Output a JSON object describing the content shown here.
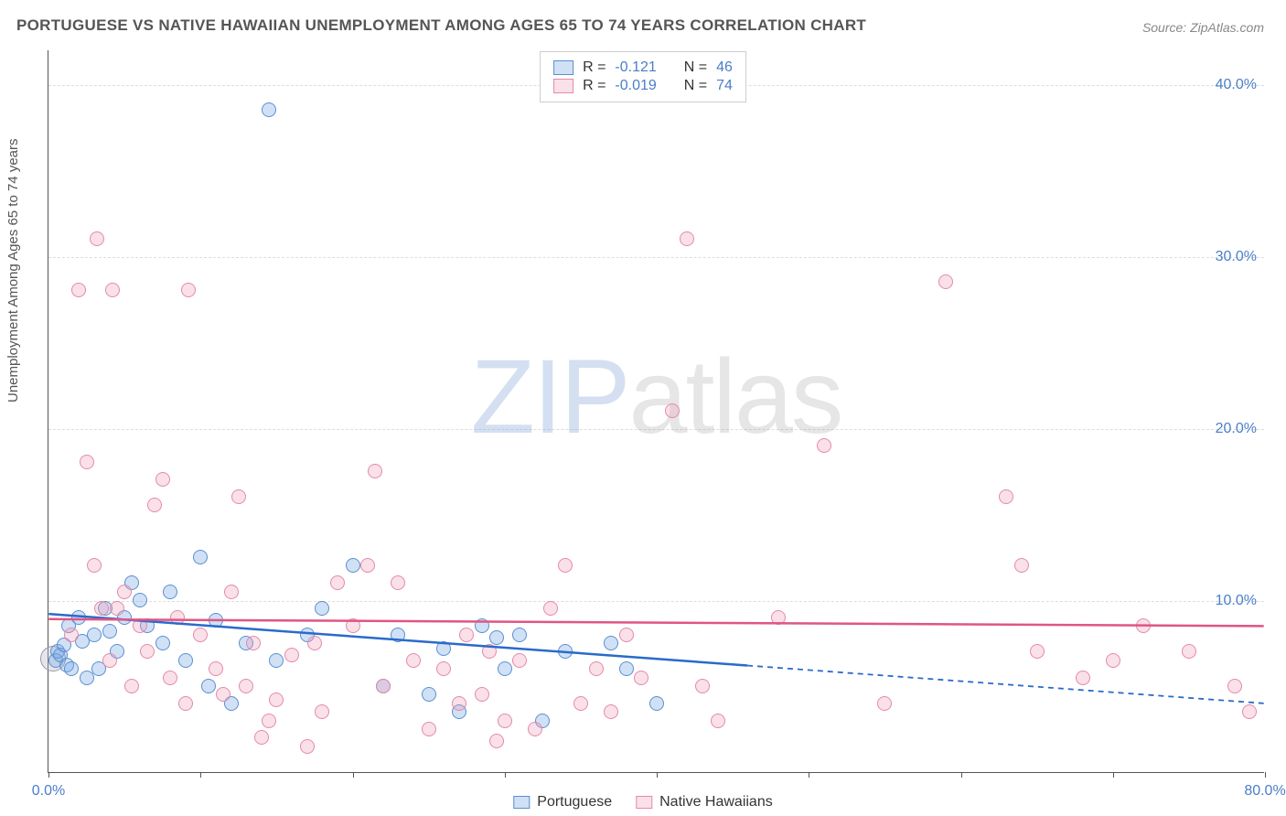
{
  "title": "PORTUGUESE VS NATIVE HAWAIIAN UNEMPLOYMENT AMONG AGES 65 TO 74 YEARS CORRELATION CHART",
  "source": "Source: ZipAtlas.com",
  "y_axis_label": "Unemployment Among Ages 65 to 74 years",
  "watermark": {
    "part1": "ZIP",
    "part2": "atlas"
  },
  "chart": {
    "type": "scatter",
    "xlim": [
      0,
      80
    ],
    "ylim": [
      0,
      42
    ],
    "y_ticks": [
      10,
      20,
      30,
      40
    ],
    "y_tick_labels": [
      "10.0%",
      "20.0%",
      "30.0%",
      "40.0%"
    ],
    "x_ticks": [
      0,
      10,
      20,
      30,
      40,
      50,
      60,
      70,
      80
    ],
    "x_tick_labels": {
      "0": "0.0%",
      "80": "80.0%"
    },
    "background_color": "#ffffff",
    "grid_color": "#dddddd",
    "axis_color": "#555555",
    "marker_radius": 8,
    "marker_stroke": 1.5,
    "series": [
      {
        "name": "Portuguese",
        "fill": "rgba(120,170,230,0.35)",
        "stroke": "#5a8fd0",
        "line_color": "#2a6acc",
        "r": -0.121,
        "n": 46,
        "regression": {
          "x1": 0,
          "y1": 9.2,
          "x2": 46,
          "y2": 6.2,
          "dash_x2": 80,
          "dash_y2": 4.0
        },
        "points": [
          [
            0.5,
            6.5
          ],
          [
            0.6,
            7.0
          ],
          [
            0.8,
            6.8
          ],
          [
            1.0,
            7.4
          ],
          [
            1.2,
            6.2
          ],
          [
            1.3,
            8.5
          ],
          [
            1.5,
            6.0
          ],
          [
            2.0,
            9.0
          ],
          [
            2.2,
            7.6
          ],
          [
            2.5,
            5.5
          ],
          [
            3.0,
            8.0
          ],
          [
            3.3,
            6.0
          ],
          [
            3.7,
            9.5
          ],
          [
            4.0,
            8.2
          ],
          [
            4.5,
            7.0
          ],
          [
            5.0,
            9.0
          ],
          [
            5.5,
            11.0
          ],
          [
            6.0,
            10.0
          ],
          [
            6.5,
            8.5
          ],
          [
            7.5,
            7.5
          ],
          [
            8.0,
            10.5
          ],
          [
            9.0,
            6.5
          ],
          [
            10.0,
            12.5
          ],
          [
            10.5,
            5.0
          ],
          [
            11.0,
            8.8
          ],
          [
            12.0,
            4.0
          ],
          [
            13.0,
            7.5
          ],
          [
            14.5,
            38.5
          ],
          [
            15.0,
            6.5
          ],
          [
            17.0,
            8.0
          ],
          [
            18.0,
            9.5
          ],
          [
            20.0,
            12.0
          ],
          [
            22.0,
            5.0
          ],
          [
            23.0,
            8.0
          ],
          [
            25.0,
            4.5
          ],
          [
            26.0,
            7.2
          ],
          [
            27.0,
            3.5
          ],
          [
            28.5,
            8.5
          ],
          [
            29.5,
            7.8
          ],
          [
            30.0,
            6.0
          ],
          [
            31.0,
            8.0
          ],
          [
            32.5,
            3.0
          ],
          [
            34.0,
            7.0
          ],
          [
            37.0,
            7.5
          ],
          [
            38.0,
            6.0
          ],
          [
            40.0,
            4.0
          ]
        ],
        "big_point": {
          "x": 0.3,
          "y": 6.6,
          "r": 14
        }
      },
      {
        "name": "Native Hawaiians",
        "fill": "rgba(240,160,185,0.32)",
        "stroke": "#e48aa8",
        "line_color": "#e05585",
        "r": -0.019,
        "n": 74,
        "regression": {
          "x1": 0,
          "y1": 8.9,
          "x2": 80,
          "y2": 8.5
        },
        "points": [
          [
            1.5,
            8.0
          ],
          [
            2.0,
            28.0
          ],
          [
            2.5,
            18.0
          ],
          [
            3.0,
            12.0
          ],
          [
            3.2,
            31.0
          ],
          [
            3.5,
            9.5
          ],
          [
            4.0,
            6.5
          ],
          [
            4.2,
            28.0
          ],
          [
            4.5,
            9.5
          ],
          [
            5.0,
            10.5
          ],
          [
            5.5,
            5.0
          ],
          [
            6.0,
            8.5
          ],
          [
            6.5,
            7.0
          ],
          [
            7.0,
            15.5
          ],
          [
            7.5,
            17.0
          ],
          [
            8.0,
            5.5
          ],
          [
            8.5,
            9.0
          ],
          [
            9.0,
            4.0
          ],
          [
            9.2,
            28.0
          ],
          [
            10.0,
            8.0
          ],
          [
            11.0,
            6.0
          ],
          [
            11.5,
            4.5
          ],
          [
            12.0,
            10.5
          ],
          [
            12.5,
            16.0
          ],
          [
            13.0,
            5.0
          ],
          [
            13.5,
            7.5
          ],
          [
            14.0,
            2.0
          ],
          [
            14.5,
            3.0
          ],
          [
            15.0,
            4.2
          ],
          [
            16.0,
            6.8
          ],
          [
            17.0,
            1.5
          ],
          [
            17.5,
            7.5
          ],
          [
            18.0,
            3.5
          ],
          [
            19.0,
            11.0
          ],
          [
            20.0,
            8.5
          ],
          [
            21.0,
            12.0
          ],
          [
            21.5,
            17.5
          ],
          [
            22.0,
            5.0
          ],
          [
            23.0,
            11.0
          ],
          [
            24.0,
            6.5
          ],
          [
            25.0,
            2.5
          ],
          [
            26.0,
            6.0
          ],
          [
            27.0,
            4.0
          ],
          [
            27.5,
            8.0
          ],
          [
            28.5,
            4.5
          ],
          [
            29.0,
            7.0
          ],
          [
            29.5,
            1.8
          ],
          [
            30.0,
            3.0
          ],
          [
            31.0,
            6.5
          ],
          [
            32.0,
            2.5
          ],
          [
            33.0,
            9.5
          ],
          [
            34.0,
            12.0
          ],
          [
            35.0,
            4.0
          ],
          [
            36.0,
            6.0
          ],
          [
            37.0,
            3.5
          ],
          [
            38.0,
            8.0
          ],
          [
            39.0,
            5.5
          ],
          [
            41.0,
            21.0
          ],
          [
            42.0,
            31.0
          ],
          [
            43.0,
            5.0
          ],
          [
            44.0,
            3.0
          ],
          [
            48.0,
            9.0
          ],
          [
            51.0,
            19.0
          ],
          [
            55.0,
            4.0
          ],
          [
            59.0,
            28.5
          ],
          [
            63.0,
            16.0
          ],
          [
            64.0,
            12.0
          ],
          [
            65.0,
            7.0
          ],
          [
            68.0,
            5.5
          ],
          [
            70.0,
            6.5
          ],
          [
            72.0,
            8.5
          ],
          [
            75.0,
            7.0
          ],
          [
            78.0,
            5.0
          ],
          [
            79.0,
            3.5
          ]
        ]
      }
    ]
  },
  "legend_top": {
    "r_label": "R =",
    "n_label": "N ="
  },
  "legend_bottom": [
    {
      "label": "Portuguese",
      "fill": "rgba(120,170,230,0.35)",
      "stroke": "#5a8fd0"
    },
    {
      "label": "Native Hawaiians",
      "fill": "rgba(240,160,185,0.32)",
      "stroke": "#e48aa8"
    }
  ],
  "colors": {
    "title": "#555555",
    "source": "#888888",
    "tick_label": "#4a7ec9"
  }
}
